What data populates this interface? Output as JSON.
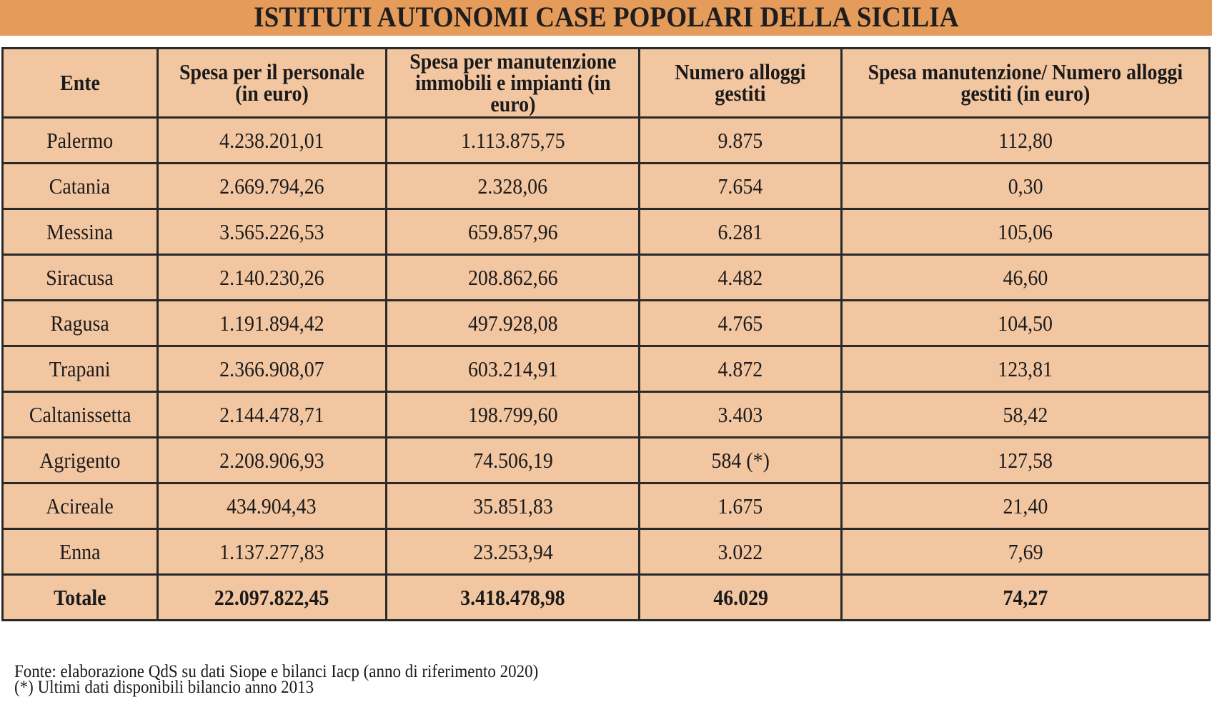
{
  "title": "ISTITUTI AUTONOMI CASE POPOLARI DELLA SICILIA",
  "colors": {
    "banner": "#E59B5A",
    "cell_bg": "#F2C6A1",
    "border": "#2A2A2A"
  },
  "table": {
    "headers": [
      "Ente",
      "Spesa per il personale (in euro)",
      "Spesa per manutenzione immobili e impianti (in euro)",
      "Numero alloggi gestiti",
      "Spesa manutenzione/ Numero alloggi gestiti (in euro)"
    ],
    "rows": [
      [
        "Palermo",
        "4.238.201,01",
        "1.113.875,75",
        "9.875",
        "112,80"
      ],
      [
        "Catania",
        "2.669.794,26",
        "2.328,06",
        "7.654",
        "0,30"
      ],
      [
        "Messina",
        "3.565.226,53",
        "659.857,96",
        "6.281",
        "105,06"
      ],
      [
        "Siracusa",
        "2.140.230,26",
        "208.862,66",
        "4.482",
        "46,60"
      ],
      [
        "Ragusa",
        "1.191.894,42",
        "497.928,08",
        "4.765",
        "104,50"
      ],
      [
        "Trapani",
        "2.366.908,07",
        "603.214,91",
        "4.872",
        "123,81"
      ],
      [
        "Caltanissetta",
        "2.144.478,71",
        "198.799,60",
        "3.403",
        "58,42"
      ],
      [
        "Agrigento",
        "2.208.906,93",
        "74.506,19",
        "584 (*)",
        "127,58"
      ],
      [
        "Acireale",
        "434.904,43",
        "35.851,83",
        "1.675",
        "21,40"
      ],
      [
        "Enna",
        "1.137.277,83",
        "23.253,94",
        "3.022",
        "7,69"
      ]
    ],
    "total": [
      "Totale",
      "22.097.822,45",
      "3.418.478,98",
      "46.029",
      "74,27"
    ]
  },
  "notes": {
    "source": "Fonte: elaborazione QdS su dati Siope e bilanci Iacp (anno di riferimento 2020)",
    "footnote": "(*) Ultimi dati disponibili bilancio anno 2013"
  }
}
